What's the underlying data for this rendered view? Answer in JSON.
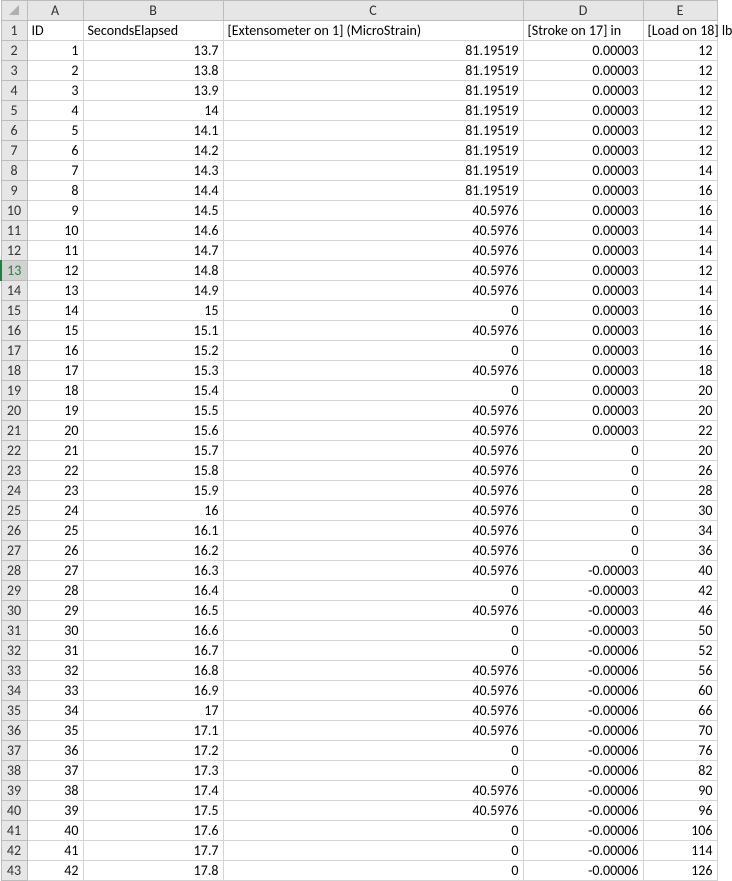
{
  "columns": {
    "letters": [
      "A",
      "B",
      "C",
      "D",
      "E"
    ],
    "headers": [
      "ID",
      "SecondsElapsed",
      "[Extensometer on 1]  (MicroStrain)",
      "[Stroke on 17]  in",
      "[Load on 18]  lb"
    ]
  },
  "selectedRow": 13,
  "rows": [
    {
      "n": 1
    },
    {
      "n": 2,
      "A": "1",
      "B": "13.7",
      "C": "81.19519",
      "D": "0.00003",
      "E": "12"
    },
    {
      "n": 3,
      "A": "2",
      "B": "13.8",
      "C": "81.19519",
      "D": "0.00003",
      "E": "12"
    },
    {
      "n": 4,
      "A": "3",
      "B": "13.9",
      "C": "81.19519",
      "D": "0.00003",
      "E": "12"
    },
    {
      "n": 5,
      "A": "4",
      "B": "14",
      "C": "81.19519",
      "D": "0.00003",
      "E": "12"
    },
    {
      "n": 6,
      "A": "5",
      "B": "14.1",
      "C": "81.19519",
      "D": "0.00003",
      "E": "12"
    },
    {
      "n": 7,
      "A": "6",
      "B": "14.2",
      "C": "81.19519",
      "D": "0.00003",
      "E": "12"
    },
    {
      "n": 8,
      "A": "7",
      "B": "14.3",
      "C": "81.19519",
      "D": "0.00003",
      "E": "14"
    },
    {
      "n": 9,
      "A": "8",
      "B": "14.4",
      "C": "81.19519",
      "D": "0.00003",
      "E": "16"
    },
    {
      "n": 10,
      "A": "9",
      "B": "14.5",
      "C": "40.5976",
      "D": "0.00003",
      "E": "16"
    },
    {
      "n": 11,
      "A": "10",
      "B": "14.6",
      "C": "40.5976",
      "D": "0.00003",
      "E": "14"
    },
    {
      "n": 12,
      "A": "11",
      "B": "14.7",
      "C": "40.5976",
      "D": "0.00003",
      "E": "14"
    },
    {
      "n": 13,
      "A": "12",
      "B": "14.8",
      "C": "40.5976",
      "D": "0.00003",
      "E": "12"
    },
    {
      "n": 14,
      "A": "13",
      "B": "14.9",
      "C": "40.5976",
      "D": "0.00003",
      "E": "14"
    },
    {
      "n": 15,
      "A": "14",
      "B": "15",
      "C": "0",
      "D": "0.00003",
      "E": "16"
    },
    {
      "n": 16,
      "A": "15",
      "B": "15.1",
      "C": "40.5976",
      "D": "0.00003",
      "E": "16"
    },
    {
      "n": 17,
      "A": "16",
      "B": "15.2",
      "C": "0",
      "D": "0.00003",
      "E": "16"
    },
    {
      "n": 18,
      "A": "17",
      "B": "15.3",
      "C": "40.5976",
      "D": "0.00003",
      "E": "18"
    },
    {
      "n": 19,
      "A": "18",
      "B": "15.4",
      "C": "0",
      "D": "0.00003",
      "E": "20"
    },
    {
      "n": 20,
      "A": "19",
      "B": "15.5",
      "C": "40.5976",
      "D": "0.00003",
      "E": "20"
    },
    {
      "n": 21,
      "A": "20",
      "B": "15.6",
      "C": "40.5976",
      "D": "0.00003",
      "E": "22"
    },
    {
      "n": 22,
      "A": "21",
      "B": "15.7",
      "C": "40.5976",
      "D": "0",
      "E": "20"
    },
    {
      "n": 23,
      "A": "22",
      "B": "15.8",
      "C": "40.5976",
      "D": "0",
      "E": "26"
    },
    {
      "n": 24,
      "A": "23",
      "B": "15.9",
      "C": "40.5976",
      "D": "0",
      "E": "28"
    },
    {
      "n": 25,
      "A": "24",
      "B": "16",
      "C": "40.5976",
      "D": "0",
      "E": "30"
    },
    {
      "n": 26,
      "A": "25",
      "B": "16.1",
      "C": "40.5976",
      "D": "0",
      "E": "34"
    },
    {
      "n": 27,
      "A": "26",
      "B": "16.2",
      "C": "40.5976",
      "D": "0",
      "E": "36"
    },
    {
      "n": 28,
      "A": "27",
      "B": "16.3",
      "C": "40.5976",
      "D": "-0.00003",
      "E": "40"
    },
    {
      "n": 29,
      "A": "28",
      "B": "16.4",
      "C": "0",
      "D": "-0.00003",
      "E": "42"
    },
    {
      "n": 30,
      "A": "29",
      "B": "16.5",
      "C": "40.5976",
      "D": "-0.00003",
      "E": "46"
    },
    {
      "n": 31,
      "A": "30",
      "B": "16.6",
      "C": "0",
      "D": "-0.00003",
      "E": "50"
    },
    {
      "n": 32,
      "A": "31",
      "B": "16.7",
      "C": "0",
      "D": "-0.00006",
      "E": "52"
    },
    {
      "n": 33,
      "A": "32",
      "B": "16.8",
      "C": "40.5976",
      "D": "-0.00006",
      "E": "56"
    },
    {
      "n": 34,
      "A": "33",
      "B": "16.9",
      "C": "40.5976",
      "D": "-0.00006",
      "E": "60"
    },
    {
      "n": 35,
      "A": "34",
      "B": "17",
      "C": "40.5976",
      "D": "-0.00006",
      "E": "66"
    },
    {
      "n": 36,
      "A": "35",
      "B": "17.1",
      "C": "40.5976",
      "D": "-0.00006",
      "E": "70"
    },
    {
      "n": 37,
      "A": "36",
      "B": "17.2",
      "C": "0",
      "D": "-0.00006",
      "E": "76"
    },
    {
      "n": 38,
      "A": "37",
      "B": "17.3",
      "C": "0",
      "D": "-0.00006",
      "E": "82"
    },
    {
      "n": 39,
      "A": "38",
      "B": "17.4",
      "C": "40.5976",
      "D": "-0.00006",
      "E": "90"
    },
    {
      "n": 40,
      "A": "39",
      "B": "17.5",
      "C": "40.5976",
      "D": "-0.00006",
      "E": "96"
    },
    {
      "n": 41,
      "A": "40",
      "B": "17.6",
      "C": "0",
      "D": "-0.00006",
      "E": "106"
    },
    {
      "n": 42,
      "A": "41",
      "B": "17.7",
      "C": "0",
      "D": "-0.00006",
      "E": "114"
    },
    {
      "n": 43,
      "A": "42",
      "B": "17.8",
      "C": "0",
      "D": "-0.00006",
      "E": "126"
    }
  ]
}
